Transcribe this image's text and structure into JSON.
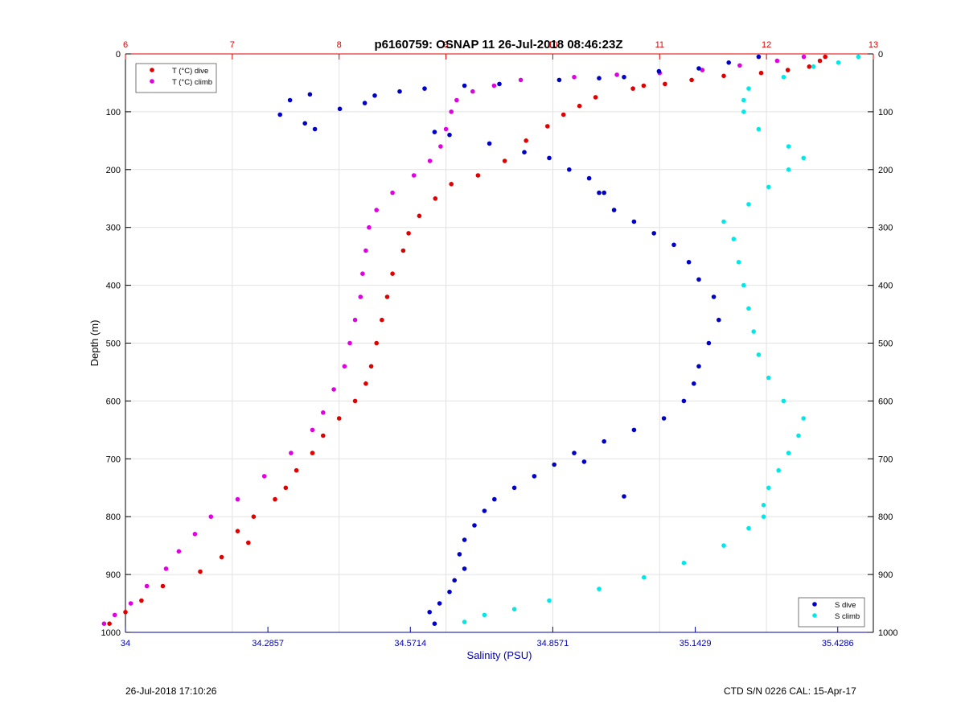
{
  "title": "p6160759: OSNAP 11 26-Jul-2018 08:46:23Z",
  "footer": {
    "left": "26-Jul-2018 17:10:26",
    "right": "CTD S/N 0226  CAL: 15-Apr-17"
  },
  "colors": {
    "t_dive": "#e00000",
    "t_climb": "#e000e0",
    "s_dive": "#0000c8",
    "s_climb": "#00e8e8",
    "temp_axis": "#e00000",
    "sal_axis": "#0000aa"
  },
  "chart_data": {
    "type": "scatter",
    "title": "p6160759: OSNAP 11 26-Jul-2018 08:46:23Z",
    "ylabel": "Depth (m)",
    "xlabel": "Salinity (PSU)",
    "ylim": [
      0,
      1000
    ],
    "y_reversed": true,
    "yticks": [
      "0",
      "100",
      "200",
      "300",
      "400",
      "500",
      "600",
      "700",
      "800",
      "900",
      "1000"
    ],
    "xlim_salinity": [
      34,
      35.5
    ],
    "salinity_ticks": [
      "34",
      "34.2857",
      "34.5714",
      "34.8571",
      "35.1429",
      "35.4286"
    ],
    "xlim_temperature": [
      6,
      13
    ],
    "temperature_ticks": [
      "6",
      "7",
      "8",
      "9",
      "10",
      "11",
      "12",
      "13"
    ],
    "grid": true,
    "legends": [
      {
        "position": "top-left",
        "entries": [
          "T (°C) dive",
          "T (°C) climb"
        ]
      },
      {
        "position": "bottom-right",
        "entries": [
          "S dive",
          "S climb"
        ]
      }
    ],
    "series": [
      {
        "name": "T (°C) dive",
        "axis": "temperature",
        "points": [
          [
            12.55,
            5
          ],
          [
            12.5,
            12
          ],
          [
            12.4,
            22
          ],
          [
            12.2,
            28
          ],
          [
            11.95,
            33
          ],
          [
            11.6,
            38
          ],
          [
            11.3,
            45
          ],
          [
            11.05,
            52
          ],
          [
            10.85,
            55
          ],
          [
            10.75,
            60
          ],
          [
            10.4,
            75
          ],
          [
            10.25,
            90
          ],
          [
            10.1,
            105
          ],
          [
            9.95,
            125
          ],
          [
            9.75,
            150
          ],
          [
            9.55,
            185
          ],
          [
            9.3,
            210
          ],
          [
            9.05,
            225
          ],
          [
            8.9,
            250
          ],
          [
            8.75,
            280
          ],
          [
            8.65,
            310
          ],
          [
            8.6,
            340
          ],
          [
            8.5,
            380
          ],
          [
            8.45,
            420
          ],
          [
            8.4,
            460
          ],
          [
            8.35,
            500
          ],
          [
            8.3,
            540
          ],
          [
            8.25,
            570
          ],
          [
            8.15,
            600
          ],
          [
            8.0,
            630
          ],
          [
            7.85,
            660
          ],
          [
            7.75,
            690
          ],
          [
            7.6,
            720
          ],
          [
            7.5,
            750
          ],
          [
            7.4,
            770
          ],
          [
            7.2,
            800
          ],
          [
            7.05,
            825
          ],
          [
            7.15,
            845
          ],
          [
            6.9,
            870
          ],
          [
            6.7,
            895
          ],
          [
            6.35,
            920
          ],
          [
            6.15,
            945
          ],
          [
            6.0,
            965
          ],
          [
            5.85,
            985
          ]
        ]
      },
      {
        "name": "T (°C) climb",
        "axis": "temperature",
        "points": [
          [
            12.35,
            5
          ],
          [
            12.1,
            12
          ],
          [
            11.75,
            20
          ],
          [
            11.4,
            28
          ],
          [
            11.0,
            33
          ],
          [
            10.6,
            36
          ],
          [
            10.2,
            40
          ],
          [
            9.7,
            45
          ],
          [
            9.45,
            55
          ],
          [
            9.25,
            65
          ],
          [
            9.1,
            80
          ],
          [
            9.05,
            100
          ],
          [
            9.0,
            130
          ],
          [
            8.95,
            160
          ],
          [
            8.85,
            185
          ],
          [
            8.7,
            210
          ],
          [
            8.5,
            240
          ],
          [
            8.35,
            270
          ],
          [
            8.28,
            300
          ],
          [
            8.25,
            340
          ],
          [
            8.22,
            380
          ],
          [
            8.2,
            420
          ],
          [
            8.15,
            460
          ],
          [
            8.1,
            500
          ],
          [
            8.05,
            540
          ],
          [
            7.95,
            580
          ],
          [
            7.85,
            620
          ],
          [
            7.75,
            650
          ],
          [
            7.55,
            690
          ],
          [
            7.3,
            730
          ],
          [
            7.05,
            770
          ],
          [
            6.8,
            800
          ],
          [
            6.65,
            830
          ],
          [
            6.5,
            860
          ],
          [
            6.38,
            890
          ],
          [
            6.2,
            920
          ],
          [
            6.05,
            950
          ],
          [
            5.9,
            970
          ],
          [
            5.8,
            985
          ]
        ]
      },
      {
        "name": "S dive",
        "axis": "salinity",
        "points": [
          [
            35.27,
            5
          ],
          [
            35.21,
            15
          ],
          [
            35.15,
            25
          ],
          [
            35.07,
            30
          ],
          [
            35.0,
            40
          ],
          [
            34.95,
            42
          ],
          [
            34.87,
            45
          ],
          [
            34.75,
            52
          ],
          [
            34.68,
            55
          ],
          [
            34.6,
            60
          ],
          [
            34.55,
            65
          ],
          [
            34.5,
            72
          ],
          [
            34.48,
            85
          ],
          [
            34.43,
            95
          ],
          [
            34.37,
            70
          ],
          [
            34.33,
            80
          ],
          [
            34.31,
            105
          ],
          [
            34.36,
            120
          ],
          [
            34.38,
            130
          ],
          [
            34.62,
            135
          ],
          [
            34.65,
            140
          ],
          [
            34.73,
            155
          ],
          [
            34.8,
            170
          ],
          [
            34.85,
            180
          ],
          [
            34.89,
            200
          ],
          [
            34.93,
            215
          ],
          [
            34.96,
            240
          ],
          [
            34.98,
            270
          ],
          [
            35.02,
            290
          ],
          [
            35.06,
            310
          ],
          [
            35.1,
            330
          ],
          [
            35.13,
            360
          ],
          [
            35.15,
            390
          ],
          [
            35.18,
            420
          ],
          [
            35.19,
            460
          ],
          [
            35.17,
            500
          ],
          [
            35.15,
            540
          ],
          [
            35.14,
            570
          ],
          [
            35.12,
            600
          ],
          [
            35.08,
            630
          ],
          [
            35.02,
            650
          ],
          [
            34.96,
            670
          ],
          [
            34.9,
            690
          ],
          [
            34.86,
            710
          ],
          [
            34.82,
            730
          ],
          [
            34.78,
            750
          ],
          [
            34.74,
            770
          ],
          [
            34.72,
            790
          ],
          [
            34.7,
            815
          ],
          [
            34.68,
            840
          ],
          [
            34.67,
            865
          ],
          [
            34.68,
            890
          ],
          [
            34.66,
            910
          ],
          [
            34.65,
            930
          ],
          [
            34.63,
            950
          ],
          [
            34.61,
            965
          ],
          [
            34.62,
            985
          ],
          [
            34.95,
            240
          ],
          [
            35.0,
            765
          ],
          [
            34.92,
            705
          ]
        ]
      },
      {
        "name": "S climb",
        "axis": "salinity",
        "points": [
          [
            35.47,
            5
          ],
          [
            35.43,
            15
          ],
          [
            35.38,
            22
          ],
          [
            35.32,
            40
          ],
          [
            35.25,
            60
          ],
          [
            35.24,
            80
          ],
          [
            35.24,
            100
          ],
          [
            35.27,
            130
          ],
          [
            35.33,
            160
          ],
          [
            35.36,
            180
          ],
          [
            35.33,
            200
          ],
          [
            35.29,
            230
          ],
          [
            35.25,
            260
          ],
          [
            35.2,
            290
          ],
          [
            35.22,
            320
          ],
          [
            35.23,
            360
          ],
          [
            35.24,
            400
          ],
          [
            35.25,
            440
          ],
          [
            35.26,
            480
          ],
          [
            35.27,
            520
          ],
          [
            35.29,
            560
          ],
          [
            35.32,
            600
          ],
          [
            35.36,
            630
          ],
          [
            35.35,
            660
          ],
          [
            35.33,
            690
          ],
          [
            35.31,
            720
          ],
          [
            35.29,
            750
          ],
          [
            35.28,
            780
          ],
          [
            35.28,
            800
          ],
          [
            35.25,
            820
          ],
          [
            35.2,
            850
          ],
          [
            35.12,
            880
          ],
          [
            35.04,
            905
          ],
          [
            34.95,
            925
          ],
          [
            34.85,
            945
          ],
          [
            34.78,
            960
          ],
          [
            34.72,
            970
          ],
          [
            34.68,
            982
          ]
        ]
      }
    ]
  }
}
